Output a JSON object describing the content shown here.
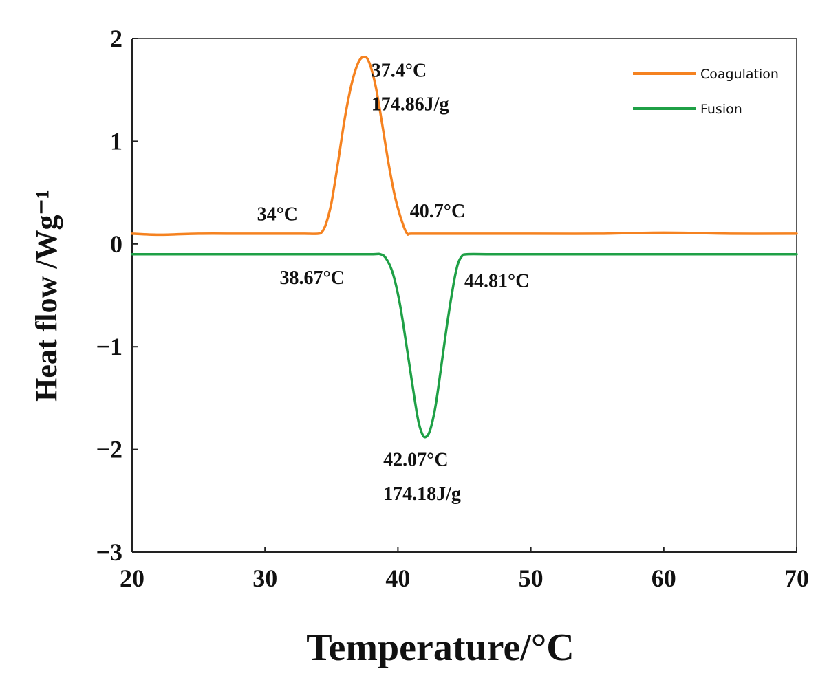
{
  "chart_data": {
    "type": "line",
    "title": "",
    "xlabel": "Temperature/°C",
    "ylabel": "Heat flow /Wg⁻¹",
    "xlim": [
      20,
      70
    ],
    "ylim": [
      -3,
      2
    ],
    "x_ticks": [
      {
        "value": 20,
        "label": "20"
      },
      {
        "value": 30,
        "label": "30"
      },
      {
        "value": 40,
        "label": "40"
      },
      {
        "value": 50,
        "label": "50"
      },
      {
        "value": 60,
        "label": "60"
      },
      {
        "value": 70,
        "label": "70"
      }
    ],
    "y_ticks": [
      {
        "value": 2,
        "label": "2"
      },
      {
        "value": 1,
        "label": "1"
      },
      {
        "value": 0,
        "label": "0"
      },
      {
        "value": -1,
        "label": "−1"
      },
      {
        "value": -2,
        "label": "−2"
      },
      {
        "value": -3,
        "label": "−3"
      }
    ],
    "grid": false,
    "legend_position": "top-right",
    "series": [
      {
        "name": "Coagulation",
        "color": "#F58220",
        "x": [
          20,
          22,
          25,
          28,
          30,
          32,
          33,
          34,
          34.3,
          34.6,
          35,
          35.5,
          36,
          36.5,
          37,
          37.4,
          37.8,
          38.3,
          38.8,
          39.3,
          39.8,
          40.3,
          40.7,
          41,
          43,
          46,
          50,
          55,
          60,
          65,
          70
        ],
        "y": [
          0.1,
          0.09,
          0.1,
          0.1,
          0.1,
          0.1,
          0.1,
          0.1,
          0.12,
          0.2,
          0.4,
          0.8,
          1.22,
          1.55,
          1.76,
          1.82,
          1.78,
          1.55,
          1.18,
          0.78,
          0.45,
          0.22,
          0.1,
          0.1,
          0.1,
          0.1,
          0.1,
          0.1,
          0.11,
          0.1,
          0.1
        ]
      },
      {
        "name": "Fusion",
        "color": "#1FA046",
        "x": [
          20,
          25,
          30,
          35,
          38,
          38.67,
          39.1,
          39.6,
          40.1,
          40.6,
          41.1,
          41.5,
          41.8,
          42.07,
          42.4,
          42.8,
          43.2,
          43.7,
          44.2,
          44.5,
          44.81,
          45.2,
          47,
          50,
          55,
          60,
          65,
          70
        ],
        "y": [
          -0.1,
          -0.1,
          -0.1,
          -0.1,
          -0.1,
          -0.1,
          -0.14,
          -0.28,
          -0.55,
          -0.95,
          -1.38,
          -1.7,
          -1.84,
          -1.88,
          -1.82,
          -1.6,
          -1.25,
          -0.78,
          -0.38,
          -0.2,
          -0.12,
          -0.1,
          -0.1,
          -0.1,
          -0.1,
          -0.1,
          -0.1,
          -0.1
        ]
      }
    ],
    "annotations": [
      {
        "id": "coag-peak-temp",
        "text": "37.4°C",
        "x": 38.0,
        "y": 1.63
      },
      {
        "id": "coag-enthalpy",
        "text": "174.86J/g",
        "x": 38.0,
        "y": 1.3
      },
      {
        "id": "coag-onset",
        "text": "34°C",
        "x": 29.4,
        "y": 0.23
      },
      {
        "id": "coag-endset",
        "text": "40.7°C",
        "x": 40.9,
        "y": 0.26
      },
      {
        "id": "fusion-onset",
        "text": "38.67°C",
        "x": 31.1,
        "y": -0.39
      },
      {
        "id": "fusion-endset",
        "text": "44.81°C",
        "x": 45.0,
        "y": -0.42
      },
      {
        "id": "fusion-peak-temp",
        "text": "42.07°C",
        "x": 38.9,
        "y": -2.16
      },
      {
        "id": "fusion-enthalpy",
        "text": "174.18J/g",
        "x": 38.9,
        "y": -2.49
      }
    ]
  }
}
